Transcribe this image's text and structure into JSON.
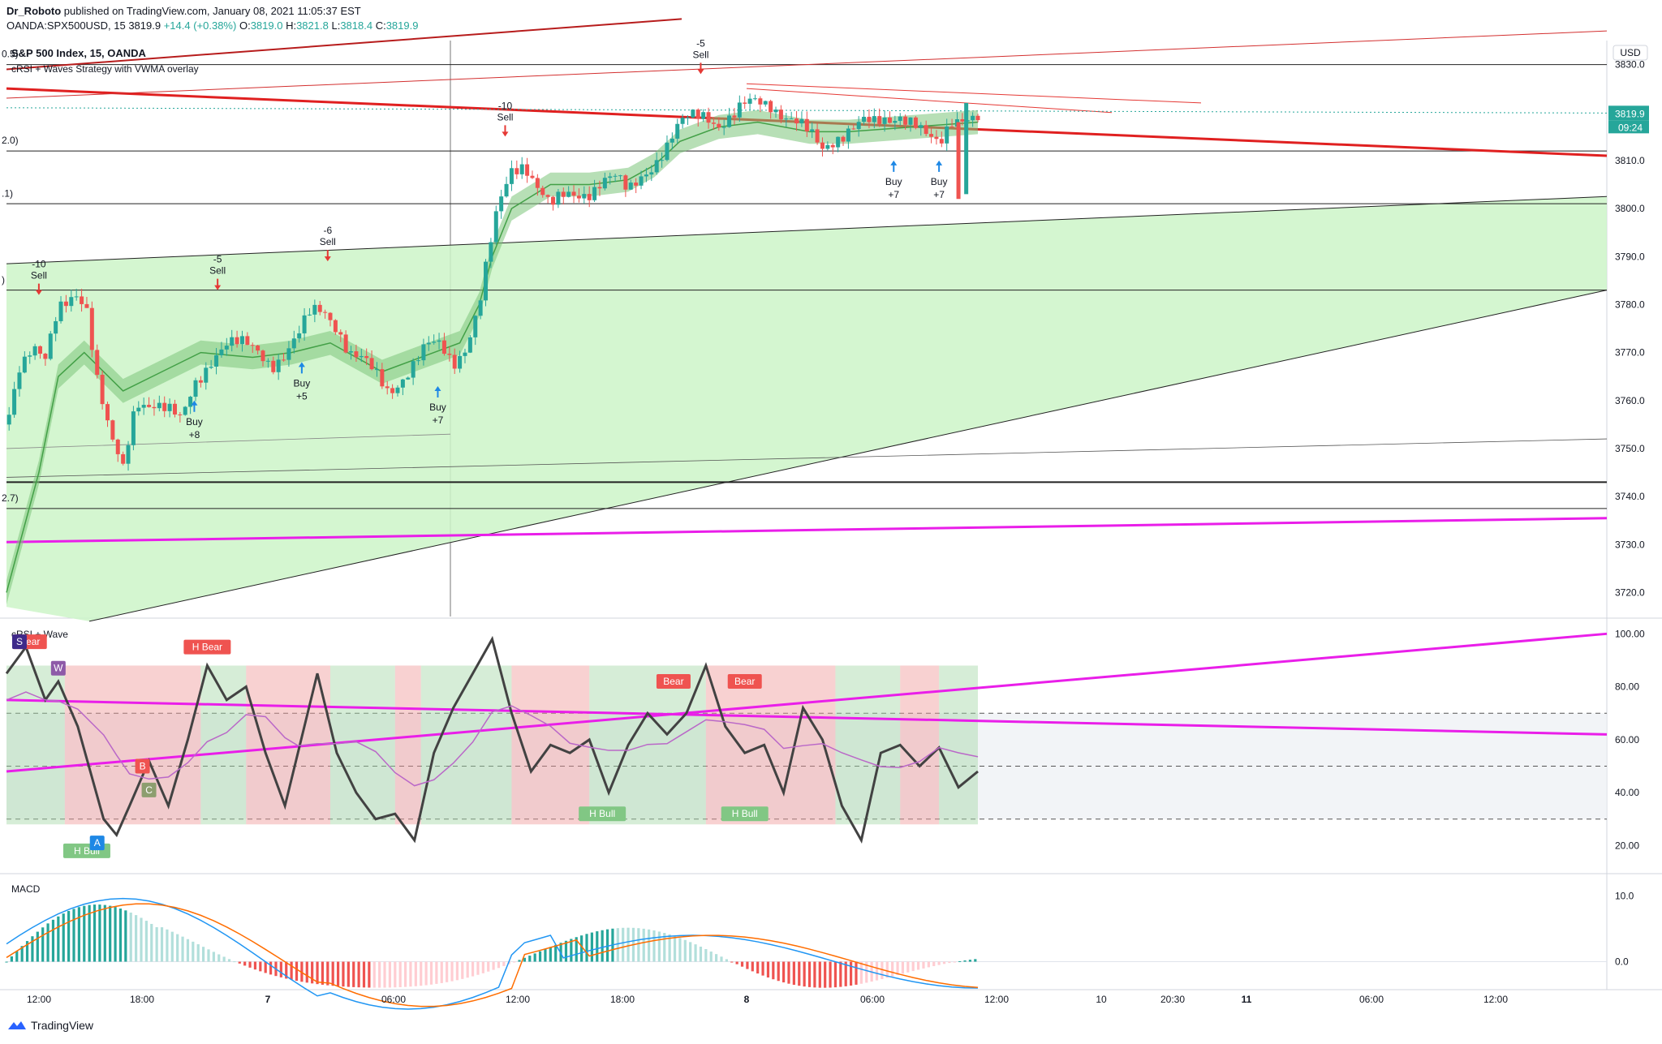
{
  "header": {
    "author": "Dr_Roboto",
    "published_text": "published on TradingView.com, January 08, 2021 11:05:37 EST",
    "symbol_line": "OANDA:SPX500USD, 15",
    "last": "3819.9",
    "change": "+14.4 (+0.38%)",
    "o_label": "O:",
    "o": "3819.0",
    "h_label": "H:",
    "h": "3821.8",
    "l_label": "L:",
    "l": "3818.4",
    "c_label": "C:",
    "c": "3819.9"
  },
  "footer": {
    "brand": "TradingView"
  },
  "chart_data": [
    {
      "type": "candlestick",
      "title": "S&P 500 Index, 15, OANDA",
      "subtitle": "cRSI + Waves Strategy with VWMA overlay",
      "currency": "USD",
      "ylim": [
        3715,
        3835
      ],
      "y_ticks": [
        "3830.0",
        "3820.0",
        "3810.0",
        "3800.0",
        "3790.0",
        "3780.0",
        "3770.0",
        "3760.0",
        "3750.0",
        "3740.0",
        "3730.0",
        "3720.0"
      ],
      "last_price": "3819.9",
      "countdown": "09:24",
      "fib_labels": [
        "0.5)",
        "2.0)",
        ".1)",
        ")",
        "2.7)"
      ],
      "close_path": [
        [
          0,
          3755
        ],
        [
          10,
          3768
        ],
        [
          20,
          3772
        ],
        [
          30,
          3768
        ],
        [
          40,
          3778
        ],
        [
          55,
          3783
        ],
        [
          62,
          3780
        ],
        [
          70,
          3765
        ],
        [
          80,
          3752
        ],
        [
          90,
          3745
        ],
        [
          100,
          3760
        ],
        [
          115,
          3760
        ],
        [
          125,
          3758
        ],
        [
          135,
          3755
        ],
        [
          145,
          3763
        ],
        [
          160,
          3770
        ],
        [
          170,
          3772
        ],
        [
          185,
          3771
        ],
        [
          195,
          3770
        ],
        [
          205,
          3768
        ],
        [
          215,
          3770
        ],
        [
          225,
          3773
        ],
        [
          235,
          3778
        ],
        [
          245,
          3779
        ],
        [
          255,
          3776
        ],
        [
          265,
          3770
        ],
        [
          275,
          3768
        ],
        [
          285,
          3765
        ],
        [
          295,
          3762
        ],
        [
          305,
          3765
        ],
        [
          315,
          3768
        ],
        [
          325,
          3771
        ],
        [
          335,
          3771
        ],
        [
          345,
          3768
        ],
        [
          355,
          3772
        ],
        [
          365,
          3780
        ],
        [
          372,
          3790
        ],
        [
          380,
          3800
        ],
        [
          390,
          3808
        ],
        [
          400,
          3810
        ],
        [
          410,
          3805
        ],
        [
          420,
          3800
        ],
        [
          430,
          3802
        ],
        [
          440,
          3803
        ],
        [
          450,
          3804
        ],
        [
          460,
          3806
        ],
        [
          470,
          3806
        ],
        [
          480,
          3803
        ],
        [
          490,
          3807
        ],
        [
          500,
          3810
        ],
        [
          510,
          3813
        ],
        [
          520,
          3817
        ],
        [
          530,
          3819
        ],
        [
          540,
          3820
        ],
        [
          550,
          3818
        ],
        [
          560,
          3819
        ],
        [
          570,
          3821
        ],
        [
          580,
          3822
        ],
        [
          590,
          3822
        ],
        [
          600,
          3820
        ],
        [
          610,
          3818
        ],
        [
          620,
          3815
        ],
        [
          630,
          3812
        ],
        [
          640,
          3815
        ],
        [
          650,
          3817
        ],
        [
          660,
          3818
        ],
        [
          670,
          3817
        ],
        [
          680,
          3818
        ],
        [
          690,
          3820
        ],
        [
          700,
          3819
        ],
        [
          710,
          3815
        ],
        [
          720,
          3812
        ],
        [
          730,
          3818
        ],
        [
          740,
          3820
        ],
        [
          750,
          3819.9
        ]
      ],
      "wave_overlay": [
        [
          0,
          3720
        ],
        [
          10,
          3730
        ],
        [
          25,
          3745
        ],
        [
          40,
          3765
        ],
        [
          60,
          3770
        ],
        [
          90,
          3762
        ],
        [
          120,
          3766
        ],
        [
          150,
          3770
        ],
        [
          190,
          3769
        ],
        [
          220,
          3770
        ],
        [
          250,
          3772
        ],
        [
          290,
          3766
        ],
        [
          330,
          3770
        ],
        [
          350,
          3772
        ],
        [
          365,
          3780
        ],
        [
          375,
          3790
        ],
        [
          390,
          3800
        ],
        [
          420,
          3805
        ],
        [
          450,
          3805
        ],
        [
          480,
          3806
        ],
        [
          500,
          3809
        ],
        [
          520,
          3814
        ],
        [
          550,
          3817
        ],
        [
          580,
          3818
        ],
        [
          620,
          3816
        ],
        [
          650,
          3816
        ],
        [
          700,
          3817
        ],
        [
          750,
          3818
        ]
      ],
      "signals": [
        {
          "label": "Sell",
          "value": "-10",
          "x": 25,
          "y": 3782
        },
        {
          "label": "Sell",
          "value": "-5",
          "x": 163,
          "y": 3783
        },
        {
          "label": "Sell",
          "value": "-6",
          "x": 248,
          "y": 3789
        },
        {
          "label": "Sell",
          "value": "-10",
          "x": 385,
          "y": 3815
        },
        {
          "label": "Sell",
          "value": "-5",
          "x": 536,
          "y": 3828
        },
        {
          "label": "Buy",
          "value": "+8",
          "x": 145,
          "y": 3760
        },
        {
          "label": "Buy",
          "value": "+5",
          "x": 228,
          "y": 3768
        },
        {
          "label": "Buy",
          "value": "+7",
          "x": 333,
          "y": 3763
        },
        {
          "label": "Buy",
          "value": "+7",
          "x": 685,
          "y": 3810
        },
        {
          "label": "Buy",
          "value": "+7",
          "x": 720,
          "y": 3810
        }
      ]
    },
    {
      "type": "line",
      "title": "cRSI + Wave",
      "ylim": [
        10,
        105
      ],
      "y_ticks": [
        "100.00",
        "80.00",
        "60.00",
        "40.00",
        "20.00"
      ],
      "levels": [
        70,
        50,
        30
      ],
      "series": [
        {
          "values": [
            [
              0,
              85
            ],
            [
              15,
              95
            ],
            [
              30,
              75
            ],
            [
              40,
              82
            ],
            [
              55,
              65
            ],
            [
              75,
              30
            ],
            [
              85,
              24
            ],
            [
              95,
              35
            ],
            [
              110,
              52
            ],
            [
              125,
              35
            ],
            [
              140,
              60
            ],
            [
              155,
              88
            ],
            [
              170,
              75
            ],
            [
              185,
              80
            ],
            [
              200,
              55
            ],
            [
              215,
              35
            ],
            [
              225,
              55
            ],
            [
              240,
              85
            ],
            [
              255,
              55
            ],
            [
              270,
              40
            ],
            [
              285,
              30
            ],
            [
              300,
              32
            ],
            [
              315,
              22
            ],
            [
              330,
              55
            ],
            [
              345,
              72
            ],
            [
              360,
              85
            ],
            [
              375,
              98
            ],
            [
              390,
              70
            ],
            [
              405,
              48
            ],
            [
              420,
              58
            ],
            [
              435,
              55
            ],
            [
              450,
              60
            ],
            [
              465,
              40
            ],
            [
              480,
              58
            ],
            [
              495,
              70
            ],
            [
              510,
              62
            ],
            [
              525,
              70
            ],
            [
              540,
              88
            ],
            [
              555,
              65
            ],
            [
              570,
              55
            ],
            [
              585,
              58
            ],
            [
              600,
              40
            ],
            [
              615,
              72
            ],
            [
              630,
              60
            ],
            [
              645,
              35
            ],
            [
              660,
              22
            ],
            [
              675,
              55
            ],
            [
              690,
              58
            ],
            [
              705,
              50
            ],
            [
              720,
              57
            ],
            [
              735,
              42
            ],
            [
              750,
              48
            ]
          ]
        }
      ],
      "labels": [
        "Bear",
        "H Bear",
        "Bear",
        "Bear",
        "H Bull",
        "H Bull",
        "H Bull",
        "A",
        "B",
        "C",
        "S",
        "W"
      ]
    },
    {
      "type": "bar",
      "title": "MACD",
      "ylim": [
        -4,
        13
      ],
      "y_ticks": [
        "10.0",
        "0.0"
      ]
    }
  ],
  "x_axis": {
    "labels": [
      "12:00",
      "18:00",
      "7",
      "06:00",
      "12:00",
      "18:00",
      "8",
      "06:00",
      "12:00",
      "10",
      "20:30",
      "11",
      "06:00",
      "12:00"
    ]
  }
}
